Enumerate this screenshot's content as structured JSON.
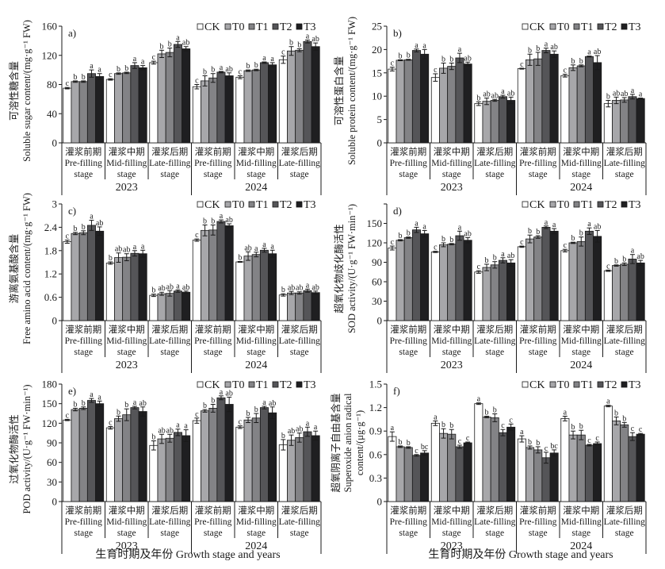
{
  "figure": {
    "x_axis_title": "生育时期及年份 Growth stage and years"
  },
  "chart_data": [
    {
      "type": "bar",
      "panel": "a)",
      "ylabel_cn": "可溶性糖含量",
      "ylabel_en": "Soluble sugar content/(mg·g⁻¹ FW)",
      "ylim": [
        0,
        160
      ],
      "yticks": [
        "0",
        "40",
        "80",
        "120",
        "160"
      ],
      "ytick_values": [
        0,
        40,
        80,
        120,
        160
      ],
      "years": [
        "2023",
        "2024"
      ],
      "stages": [
        {
          "cn": "灌浆前期",
          "en1": "Pre-filling",
          "en2": "stage"
        },
        {
          "cn": "灌浆中期",
          "en1": "Mid-filling",
          "en2": "stage"
        },
        {
          "cn": "灌浆后期",
          "en1": "Late-filling",
          "en2": "stage"
        }
      ],
      "legend": [
        "CK",
        "T0",
        "T1",
        "T2",
        "T3"
      ],
      "legend_position": "top-right",
      "series": [
        {
          "name": "CK",
          "values": [
            75,
            87,
            110,
            77,
            90,
            114
          ],
          "err": [
            1,
            1,
            2,
            3,
            2,
            5
          ],
          "sig": [
            "c",
            "c",
            "c",
            "c",
            "c",
            "c"
          ]
        },
        {
          "name": "T0",
          "values": [
            84,
            95,
            122,
            85,
            99,
            126
          ],
          "err": [
            1,
            1,
            5,
            7,
            1,
            6
          ],
          "sig": [
            "b",
            "b",
            "b",
            "b",
            "b",
            "b"
          ]
        },
        {
          "name": "T1",
          "values": [
            84,
            96,
            124,
            89,
            100,
            127
          ],
          "err": [
            1,
            1,
            6,
            6,
            1,
            2
          ],
          "sig": [
            "b",
            "b",
            "b",
            "b",
            "b",
            "b"
          ]
        },
        {
          "name": "T2",
          "values": [
            95,
            106,
            135,
            97,
            110,
            139
          ],
          "err": [
            5,
            4,
            4,
            1,
            1,
            2
          ],
          "sig": [
            "a",
            "a",
            "a",
            "a",
            "a",
            "a"
          ]
        },
        {
          "name": "T3",
          "values": [
            91,
            103,
            129,
            92,
            107,
            132
          ],
          "err": [
            4,
            3,
            3,
            4,
            3,
            5
          ],
          "sig": [
            "a",
            "a",
            "ab",
            "ab",
            "a",
            "ab"
          ]
        }
      ]
    },
    {
      "type": "bar",
      "panel": "b)",
      "ylabel_cn": "可溶性蛋白含量",
      "ylabel_en": "Soluble protein content/(mg·g⁻¹ FW)",
      "ylim": [
        0,
        25
      ],
      "yticks": [
        "0",
        "5",
        "10",
        "15",
        "20",
        "25"
      ],
      "ytick_values": [
        0,
        5,
        10,
        15,
        20,
        25
      ],
      "years": [
        "2023",
        "2024"
      ],
      "stages": [
        {
          "cn": "灌浆前期",
          "en1": "Pre-filling",
          "en2": "stage"
        },
        {
          "cn": "灌浆中期",
          "en1": "Mid-filling",
          "en2": "stage"
        },
        {
          "cn": "灌浆后期",
          "en1": "Late-filling",
          "en2": "stage"
        }
      ],
      "legend": [
        "CK",
        "T0",
        "T1",
        "T2",
        "T3"
      ],
      "legend_position": "top-right",
      "series": [
        {
          "name": "CK",
          "values": [
            15.8,
            14.0,
            8.4,
            15.9,
            14.4,
            8.4
          ],
          "err": [
            0.4,
            0.8,
            0.4,
            0.1,
            0.3,
            0.7
          ],
          "sig": [
            "c",
            "c",
            "b",
            "c",
            "c",
            "b"
          ]
        },
        {
          "name": "T0",
          "values": [
            17.7,
            16.0,
            8.9,
            17.8,
            16.1,
            9.1
          ],
          "err": [
            0.1,
            1.1,
            0.7,
            1.2,
            0.6,
            0.7
          ],
          "sig": [
            "b",
            "b",
            "ab",
            "b",
            "b",
            "ab"
          ]
        },
        {
          "name": "T1",
          "values": [
            17.8,
            16.4,
            9.1,
            18.0,
            16.5,
            9.2
          ],
          "err": [
            0.1,
            0.7,
            0.2,
            1.4,
            0.2,
            0.5
          ],
          "sig": [
            "b",
            "b",
            "ab",
            "b",
            "b",
            "ab"
          ]
        },
        {
          "name": "T2",
          "values": [
            19.8,
            18.2,
            9.9,
            19.8,
            18.5,
            9.9
          ],
          "err": [
            0.3,
            1.0,
            0.3,
            0.5,
            0.1,
            0.5
          ],
          "sig": [
            "a",
            "a",
            "a",
            "a",
            "a",
            "a"
          ]
        },
        {
          "name": "T3",
          "values": [
            19.0,
            16.9,
            9.1,
            19.0,
            17.2,
            9.5
          ],
          "err": [
            1.0,
            0.4,
            0.7,
            0.7,
            1.5,
            0.1
          ],
          "sig": [
            "a",
            "ab",
            "ab",
            "ab",
            "ab",
            "a"
          ]
        }
      ]
    },
    {
      "type": "bar",
      "panel": "c)",
      "ylabel_cn": "游离氨基酸含量",
      "ylabel_en": "Free amino acid content/(mg·g⁻¹ FW)",
      "ylim": [
        0,
        3
      ],
      "yticks": [
        "0",
        "0.6",
        "1.2",
        "1.8",
        "2.4",
        "3"
      ],
      "ytick_values": [
        0,
        0.6,
        1.2,
        1.8,
        2.4,
        3
      ],
      "years": [
        "2023",
        "2024"
      ],
      "stages": [
        {
          "cn": "灌浆前期",
          "en1": "Pre-filling",
          "en2": "stage"
        },
        {
          "cn": "灌浆中期",
          "en1": "Mid-filling",
          "en2": "stage"
        },
        {
          "cn": "灌浆后期",
          "en1": "Late-filling",
          "en2": "stage"
        }
      ],
      "legend": [
        "CK",
        "T0",
        "T1",
        "T2",
        "T3"
      ],
      "legend_position": "top-right",
      "series": [
        {
          "name": "CK",
          "values": [
            2.03,
            1.48,
            0.65,
            2.07,
            1.51,
            0.66
          ],
          "err": [
            0.04,
            0.03,
            0.03,
            0.03,
            0.01,
            0.03
          ],
          "sig": [
            "c",
            "b",
            "b",
            "c",
            "b",
            "b"
          ]
        },
        {
          "name": "T0",
          "values": [
            2.24,
            1.62,
            0.69,
            2.32,
            1.66,
            0.71
          ],
          "err": [
            0.03,
            0.12,
            0.04,
            0.14,
            0.11,
            0.04
          ],
          "sig": [
            "b",
            "ab",
            "ab",
            "b",
            "ab",
            "ab"
          ]
        },
        {
          "name": "T1",
          "values": [
            2.26,
            1.63,
            0.7,
            2.33,
            1.7,
            0.71
          ],
          "err": [
            0.05,
            0.09,
            0.07,
            0.13,
            0.06,
            0.03
          ],
          "sig": [
            "b",
            "ab",
            "ab",
            "b",
            "a",
            "ab"
          ]
        },
        {
          "name": "T2",
          "values": [
            2.45,
            1.73,
            0.76,
            2.55,
            1.81,
            0.77
          ],
          "err": [
            0.13,
            0.07,
            0.03,
            0.04,
            0.05,
            0.04
          ],
          "sig": [
            "a",
            "a",
            "a",
            "a",
            "a",
            "a"
          ]
        },
        {
          "name": "T3",
          "values": [
            2.3,
            1.72,
            0.73,
            2.44,
            1.72,
            0.72
          ],
          "err": [
            0.11,
            0.09,
            0.03,
            0.05,
            0.09,
            0.04
          ],
          "sig": [
            "ab",
            "a",
            "ab",
            "ab",
            "a",
            "ab"
          ]
        }
      ]
    },
    {
      "type": "bar",
      "panel": "d)",
      "ylabel_cn": "超氧化物歧化酶活性",
      "ylabel_en": "SOD activity/(U·g⁻¹ FW·min⁻¹)",
      "ylim": [
        0,
        180
      ],
      "yticks": [
        "0",
        "30",
        "60",
        "90",
        "120",
        "150"
      ],
      "ytick_values": [
        0,
        30,
        60,
        90,
        120,
        150
      ],
      "years": [
        "2023",
        "2024"
      ],
      "stages": [
        {
          "cn": "灌浆前期",
          "en1": "Pre-filling",
          "en2": "stage"
        },
        {
          "cn": "灌浆中期",
          "en1": "Mid-filling",
          "en2": "stage"
        },
        {
          "cn": "灌浆后期",
          "en1": "Late-filling",
          "en2": "stage"
        }
      ],
      "legend": [
        "CK",
        "T0",
        "T1",
        "T2",
        "T3"
      ],
      "legend_position": "top-right",
      "series": [
        {
          "name": "CK",
          "values": [
            112,
            106,
            75,
            114,
            108,
            77
          ],
          "err": [
            3,
            1,
            2,
            1,
            2,
            1
          ],
          "sig": [
            "c",
            "c",
            "c",
            "c",
            "c",
            "c"
          ]
        },
        {
          "name": "T0",
          "values": [
            124,
            117,
            82,
            126,
            120,
            85
          ],
          "err": [
            1,
            3,
            5,
            6,
            1,
            1
          ],
          "sig": [
            "b",
            "b",
            "b",
            "b",
            "b",
            "b"
          ]
        },
        {
          "name": "T1",
          "values": [
            128,
            118,
            86,
            129,
            122,
            87
          ],
          "err": [
            1,
            1,
            5,
            2,
            7,
            2
          ],
          "sig": [
            "b",
            "b",
            "b",
            "b",
            "b",
            "b"
          ]
        },
        {
          "name": "T2",
          "values": [
            140,
            131,
            93,
            144,
            138,
            95
          ],
          "err": [
            4,
            7,
            4,
            2,
            5,
            7
          ],
          "sig": [
            "a",
            "a",
            "a",
            "a",
            "a",
            "a"
          ]
        },
        {
          "name": "T3",
          "values": [
            134,
            124,
            89,
            138,
            130,
            89
          ],
          "err": [
            5,
            4,
            5,
            4,
            9,
            4
          ],
          "sig": [
            "a",
            "ab",
            "ab",
            "a",
            "ab",
            "ab"
          ]
        }
      ]
    },
    {
      "type": "bar",
      "panel": "e)",
      "ylabel_cn": "过氧化物酶活性",
      "ylabel_en": "POD activity/(U·g⁻¹ FW·min⁻¹)",
      "ylim": [
        0,
        180
      ],
      "yticks": [
        "0",
        "30",
        "60",
        "90",
        "120",
        "150",
        "180"
      ],
      "ytick_values": [
        0,
        30,
        60,
        90,
        120,
        150,
        180
      ],
      "years": [
        "2023",
        "2024"
      ],
      "stages": [
        {
          "cn": "灌浆前期",
          "en1": "Pre-filling",
          "en2": "stage"
        },
        {
          "cn": "灌浆中期",
          "en1": "Mid-filling",
          "en2": "stage"
        },
        {
          "cn": "灌浆后期",
          "en1": "Late-filling",
          "en2": "stage"
        }
      ],
      "legend": [
        "CK",
        "T0",
        "T1",
        "T2",
        "T3"
      ],
      "legend_position": "top-right",
      "series": [
        {
          "name": "CK",
          "values": [
            125,
            113,
            86,
            124,
            114,
            87
          ],
          "err": [
            1,
            2,
            7,
            4,
            2,
            8
          ],
          "sig": [
            "c",
            "c",
            "b",
            "c",
            "c",
            "b"
          ]
        },
        {
          "name": "T0",
          "values": [
            141,
            127,
            96,
            139,
            125,
            94
          ],
          "err": [
            2,
            4,
            7,
            2,
            4,
            8
          ],
          "sig": [
            "b",
            "b",
            "ab",
            "b",
            "b",
            "ab"
          ]
        },
        {
          "name": "T1",
          "values": [
            143,
            133,
            97,
            143,
            128,
            98
          ],
          "err": [
            2,
            9,
            6,
            6,
            7,
            7
          ],
          "sig": [
            "b",
            "b",
            "ab",
            "b",
            "b",
            "ab"
          ]
        },
        {
          "name": "T2",
          "values": [
            155,
            144,
            106,
            159,
            144,
            107
          ],
          "err": [
            3,
            2,
            5,
            3,
            2,
            7
          ],
          "sig": [
            "a",
            "a",
            "a",
            "a",
            "a",
            "a"
          ]
        },
        {
          "name": "T3",
          "values": [
            150,
            138,
            101,
            149,
            136,
            101
          ],
          "err": [
            4,
            7,
            9,
            11,
            9,
            7
          ],
          "sig": [
            "a",
            "ab",
            "a",
            "ab",
            "ab",
            "a"
          ]
        }
      ]
    },
    {
      "type": "bar",
      "panel": "f)",
      "ylabel_cn": "超氧阴离子自由基含量",
      "ylabel_en": "Superoxide anion radical",
      "ylabel_en2": "content/(μg·g⁻¹)",
      "ylim": [
        0,
        1.5
      ],
      "yticks": [
        "0",
        "0.3",
        "0.6",
        "0.9",
        "1.2",
        "1.5"
      ],
      "ytick_values": [
        0,
        0.3,
        0.6,
        0.9,
        1.2,
        1.5
      ],
      "years": [
        "2023",
        "2024"
      ],
      "stages": [
        {
          "cn": "灌浆前期",
          "en1": "Pre-filling",
          "en2": "stage"
        },
        {
          "cn": "灌浆中期",
          "en1": "Mid-filling",
          "en2": "stage"
        },
        {
          "cn": "灌浆后期",
          "en1": "Late-filling",
          "en2": "stage"
        }
      ],
      "legend": [
        "CK",
        "T0",
        "T1",
        "T2",
        "T3"
      ],
      "legend_position": "top-right",
      "series": [
        {
          "name": "CK",
          "values": [
            0.83,
            1.0,
            1.25,
            0.8,
            1.06,
            1.22
          ],
          "err": [
            0.06,
            0.03,
            0.01,
            0.04,
            0.03,
            0.01
          ],
          "sig": [
            "a",
            "a",
            "a",
            "a",
            "a",
            "a"
          ]
        },
        {
          "name": "T0",
          "values": [
            0.7,
            0.87,
            1.08,
            0.69,
            0.85,
            1.03
          ],
          "err": [
            0.01,
            0.06,
            0.01,
            0.02,
            0.05,
            0.05
          ],
          "sig": [
            "b",
            "b",
            "b",
            "b",
            "b",
            "b"
          ]
        },
        {
          "name": "T1",
          "values": [
            0.69,
            0.86,
            1.07,
            0.66,
            0.85,
            0.98
          ],
          "err": [
            0.01,
            0.06,
            0.05,
            0.04,
            0.06,
            0.03
          ],
          "sig": [
            "b",
            "b",
            "b",
            "b",
            "b",
            "b"
          ]
        },
        {
          "name": "T2",
          "values": [
            0.59,
            0.7,
            0.88,
            0.56,
            0.72,
            0.83
          ],
          "err": [
            0.01,
            0.02,
            0.04,
            0.07,
            0.01,
            0.05
          ],
          "sig": [
            "c",
            "c",
            "c",
            "c",
            "c",
            "c"
          ]
        },
        {
          "name": "T3",
          "values": [
            0.62,
            0.75,
            0.95,
            0.62,
            0.74,
            0.86
          ],
          "err": [
            0.03,
            0.01,
            0.04,
            0.04,
            0.02,
            0.01
          ],
          "sig": [
            "bc",
            "c",
            "c",
            "bc",
            "c",
            "c"
          ]
        }
      ]
    }
  ],
  "colors": {
    "CK": "#ffffff",
    "T0": "#a7a7aa",
    "T1": "#838386",
    "T2": "#555558",
    "T3": "#1f1f21",
    "axis": "#1a1a1a"
  }
}
